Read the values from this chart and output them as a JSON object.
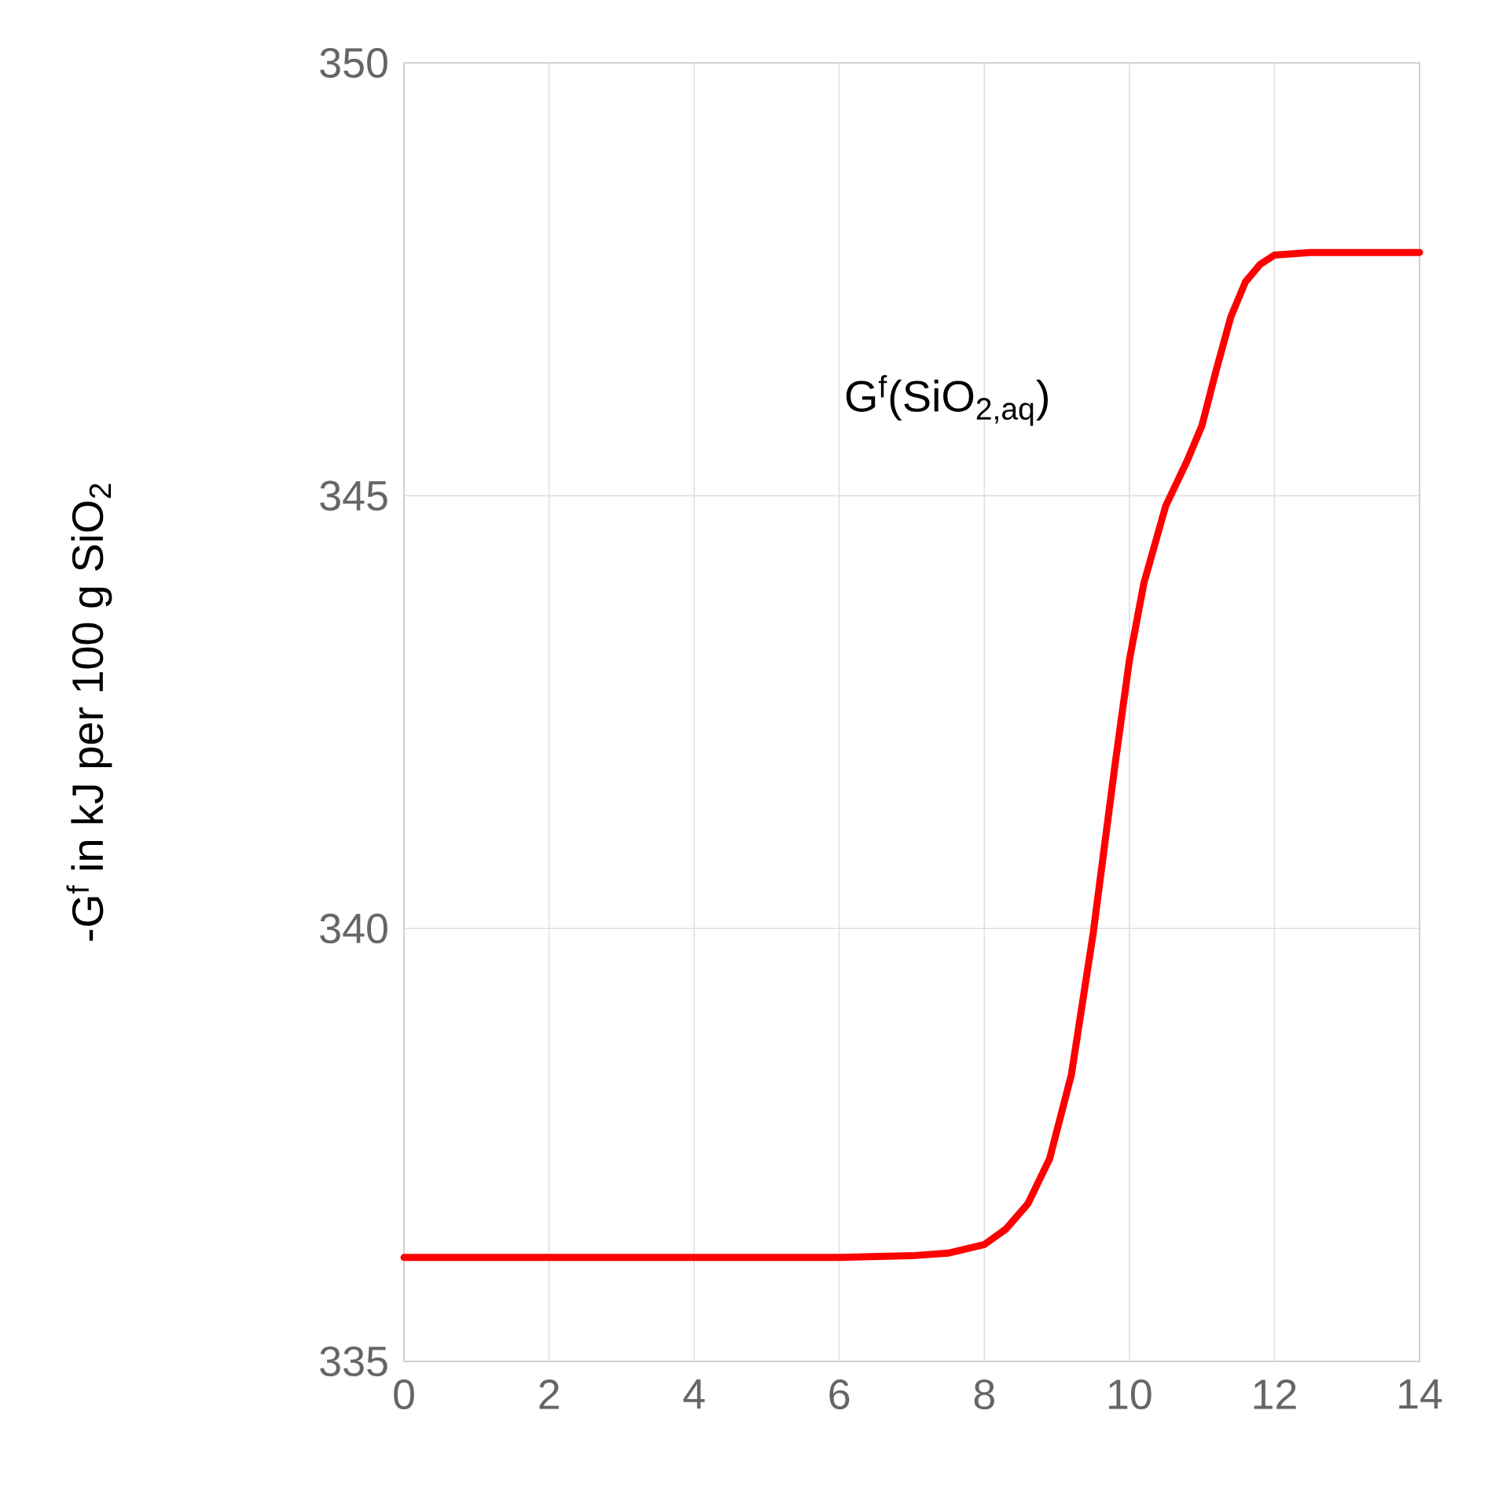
{
  "chart_data": {
    "type": "line",
    "ylabel": "-G$^{f}$ in kJ per 100 g SiO$_{2}$",
    "annotations": [
      "G$^{f}$(SiO$_{2,aq}$)"
    ],
    "x": [
      0,
      2,
      4,
      6,
      7,
      7.5,
      8,
      8.3,
      8.6,
      8.9,
      9.2,
      9.5,
      9.8,
      10,
      10.2,
      10.5,
      10.8,
      11,
      11.2,
      11.4,
      11.6,
      11.8,
      12,
      12.5,
      14
    ],
    "series": [
      {
        "color": "#ff0000",
        "values": [
          336.2,
          336.2,
          336.2,
          336.2,
          336.22,
          336.25,
          336.35,
          336.53,
          336.82,
          337.34,
          338.31,
          339.94,
          341.88,
          343.1,
          343.99,
          344.88,
          345.41,
          345.81,
          346.46,
          347.07,
          347.47,
          347.67,
          347.78,
          347.81,
          347.81
        ]
      }
    ],
    "xlim": [
      0,
      14
    ],
    "xticks": [
      0,
      2,
      4,
      6,
      8,
      10,
      12,
      14
    ],
    "ylim": [
      335,
      350
    ],
    "yticks": [
      335,
      340,
      345,
      350
    ],
    "grid": true,
    "marker": "none",
    "line_style": "solid"
  }
}
